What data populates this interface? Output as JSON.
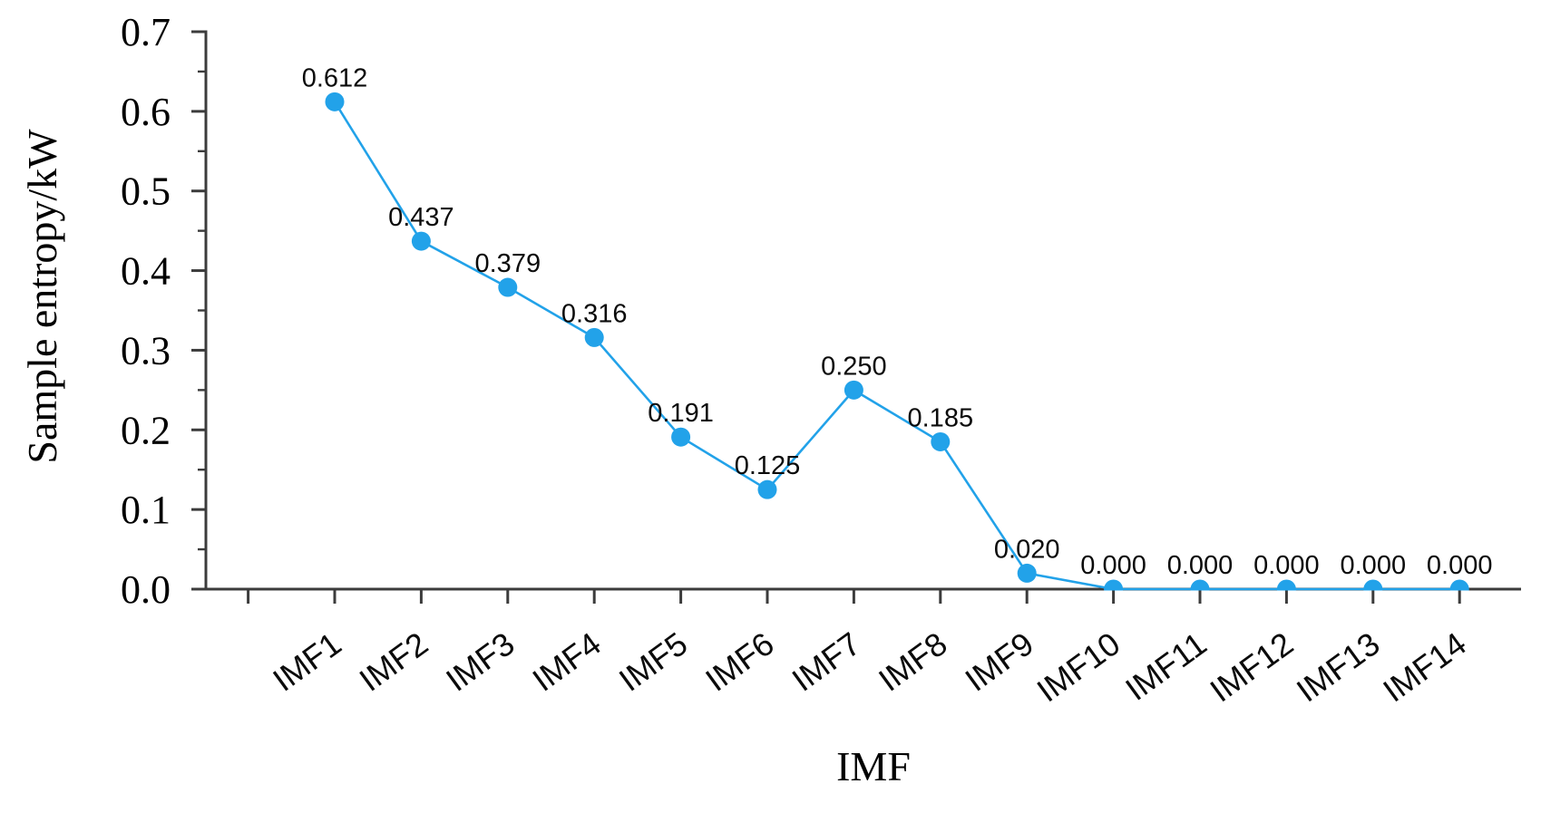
{
  "chart_data": {
    "type": "line",
    "title": "",
    "categories": [
      "IMF1",
      "IMF2",
      "IMF3",
      "IMF4",
      "IMF5",
      "IMF6",
      "IMF7",
      "IMF8",
      "IMF9",
      "IMF10",
      "IMF11",
      "IMF12",
      "IMF13",
      "IMF14"
    ],
    "values": [
      0.612,
      0.437,
      0.379,
      0.316,
      0.191,
      0.125,
      0.25,
      0.185,
      0.02,
      0.0,
      0.0,
      0.0,
      0.0,
      0.0
    ],
    "point_labels": [
      "0.612",
      "0.437",
      "0.379",
      "0.316",
      "0.191",
      "0.125",
      "0.250",
      "0.185",
      "0.020",
      "0.000",
      "0.000",
      "0.000",
      "0.000",
      "0.000"
    ],
    "xlabel": "IMF",
    "ylabel": "Sample entropy/kW",
    "ylim": [
      0.0,
      0.7
    ],
    "ytick_labels": [
      "0.0",
      "0.1",
      "0.2",
      "0.3",
      "0.4",
      "0.5",
      "0.6",
      "0.7"
    ],
    "ytick_step": 0.1,
    "minor_tick_step": 0.05,
    "grid": false,
    "legend": "none",
    "marker_style": "circle",
    "colors": {
      "line": "#22A2E9",
      "marker": "#22A2E9",
      "axis": "#3C3C3C",
      "tick_label": "#000000",
      "point_label": "#0B0B0B"
    }
  }
}
